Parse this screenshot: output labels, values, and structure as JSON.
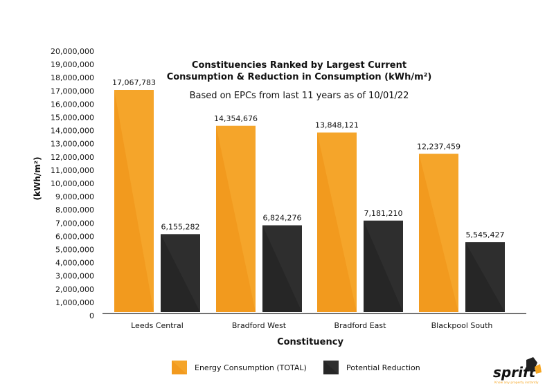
{
  "chart_data": {
    "type": "bar",
    "title": "Constituencies Ranked by Largest Current Consumption & Reduction in Consumption (kWh/m²)",
    "title_lines": [
      "Constituencies Ranked by Largest Current",
      "Consumption & Reduction in Consumption (kWh/m²)"
    ],
    "subtitle": "Based on EPCs from last 11 years as of 10/01/22",
    "xlabel": "Constituency",
    "ylabel": "(kWh/m²)",
    "ylim": [
      0,
      20000000
    ],
    "ytick_step": 1000000,
    "yticks": [
      "0",
      "1,000,000",
      "2,000,000",
      "3,000,000",
      "4,000,000",
      "5,000,000",
      "6,000,000",
      "7,000,000",
      "8,000,000",
      "9,000,000",
      "10,000,000",
      "11,000,000",
      "12,000,000",
      "13,000,000",
      "14,000,000",
      "15,000,000",
      "16,000,000",
      "17,000,000",
      "18,000,000",
      "19,000,000",
      "20,000,000"
    ],
    "grid": false,
    "legend_position": "bottom",
    "categories": [
      "Leeds Central",
      "Bradford West",
      "Bradford East",
      "Blackpool South"
    ],
    "series": [
      {
        "name": "Energy Consumption (TOTAL)",
        "color": "#F29A1E",
        "values": [
          17067783,
          14354676,
          13848121,
          12237459
        ],
        "labels": [
          "17,067,783",
          "14,354,676",
          "13,848,121",
          "12,237,459"
        ]
      },
      {
        "name": "Potential Reduction",
        "color": "#262626",
        "values": [
          6155282,
          6824276,
          7181210,
          5545427
        ],
        "labels": [
          "6,155,282",
          "6,824,276",
          "7,181,210",
          "5,545,427"
        ]
      }
    ]
  },
  "logo": {
    "text": "sprift",
    "tagline": "Know any property instantly",
    "accent": "#F5A623"
  }
}
